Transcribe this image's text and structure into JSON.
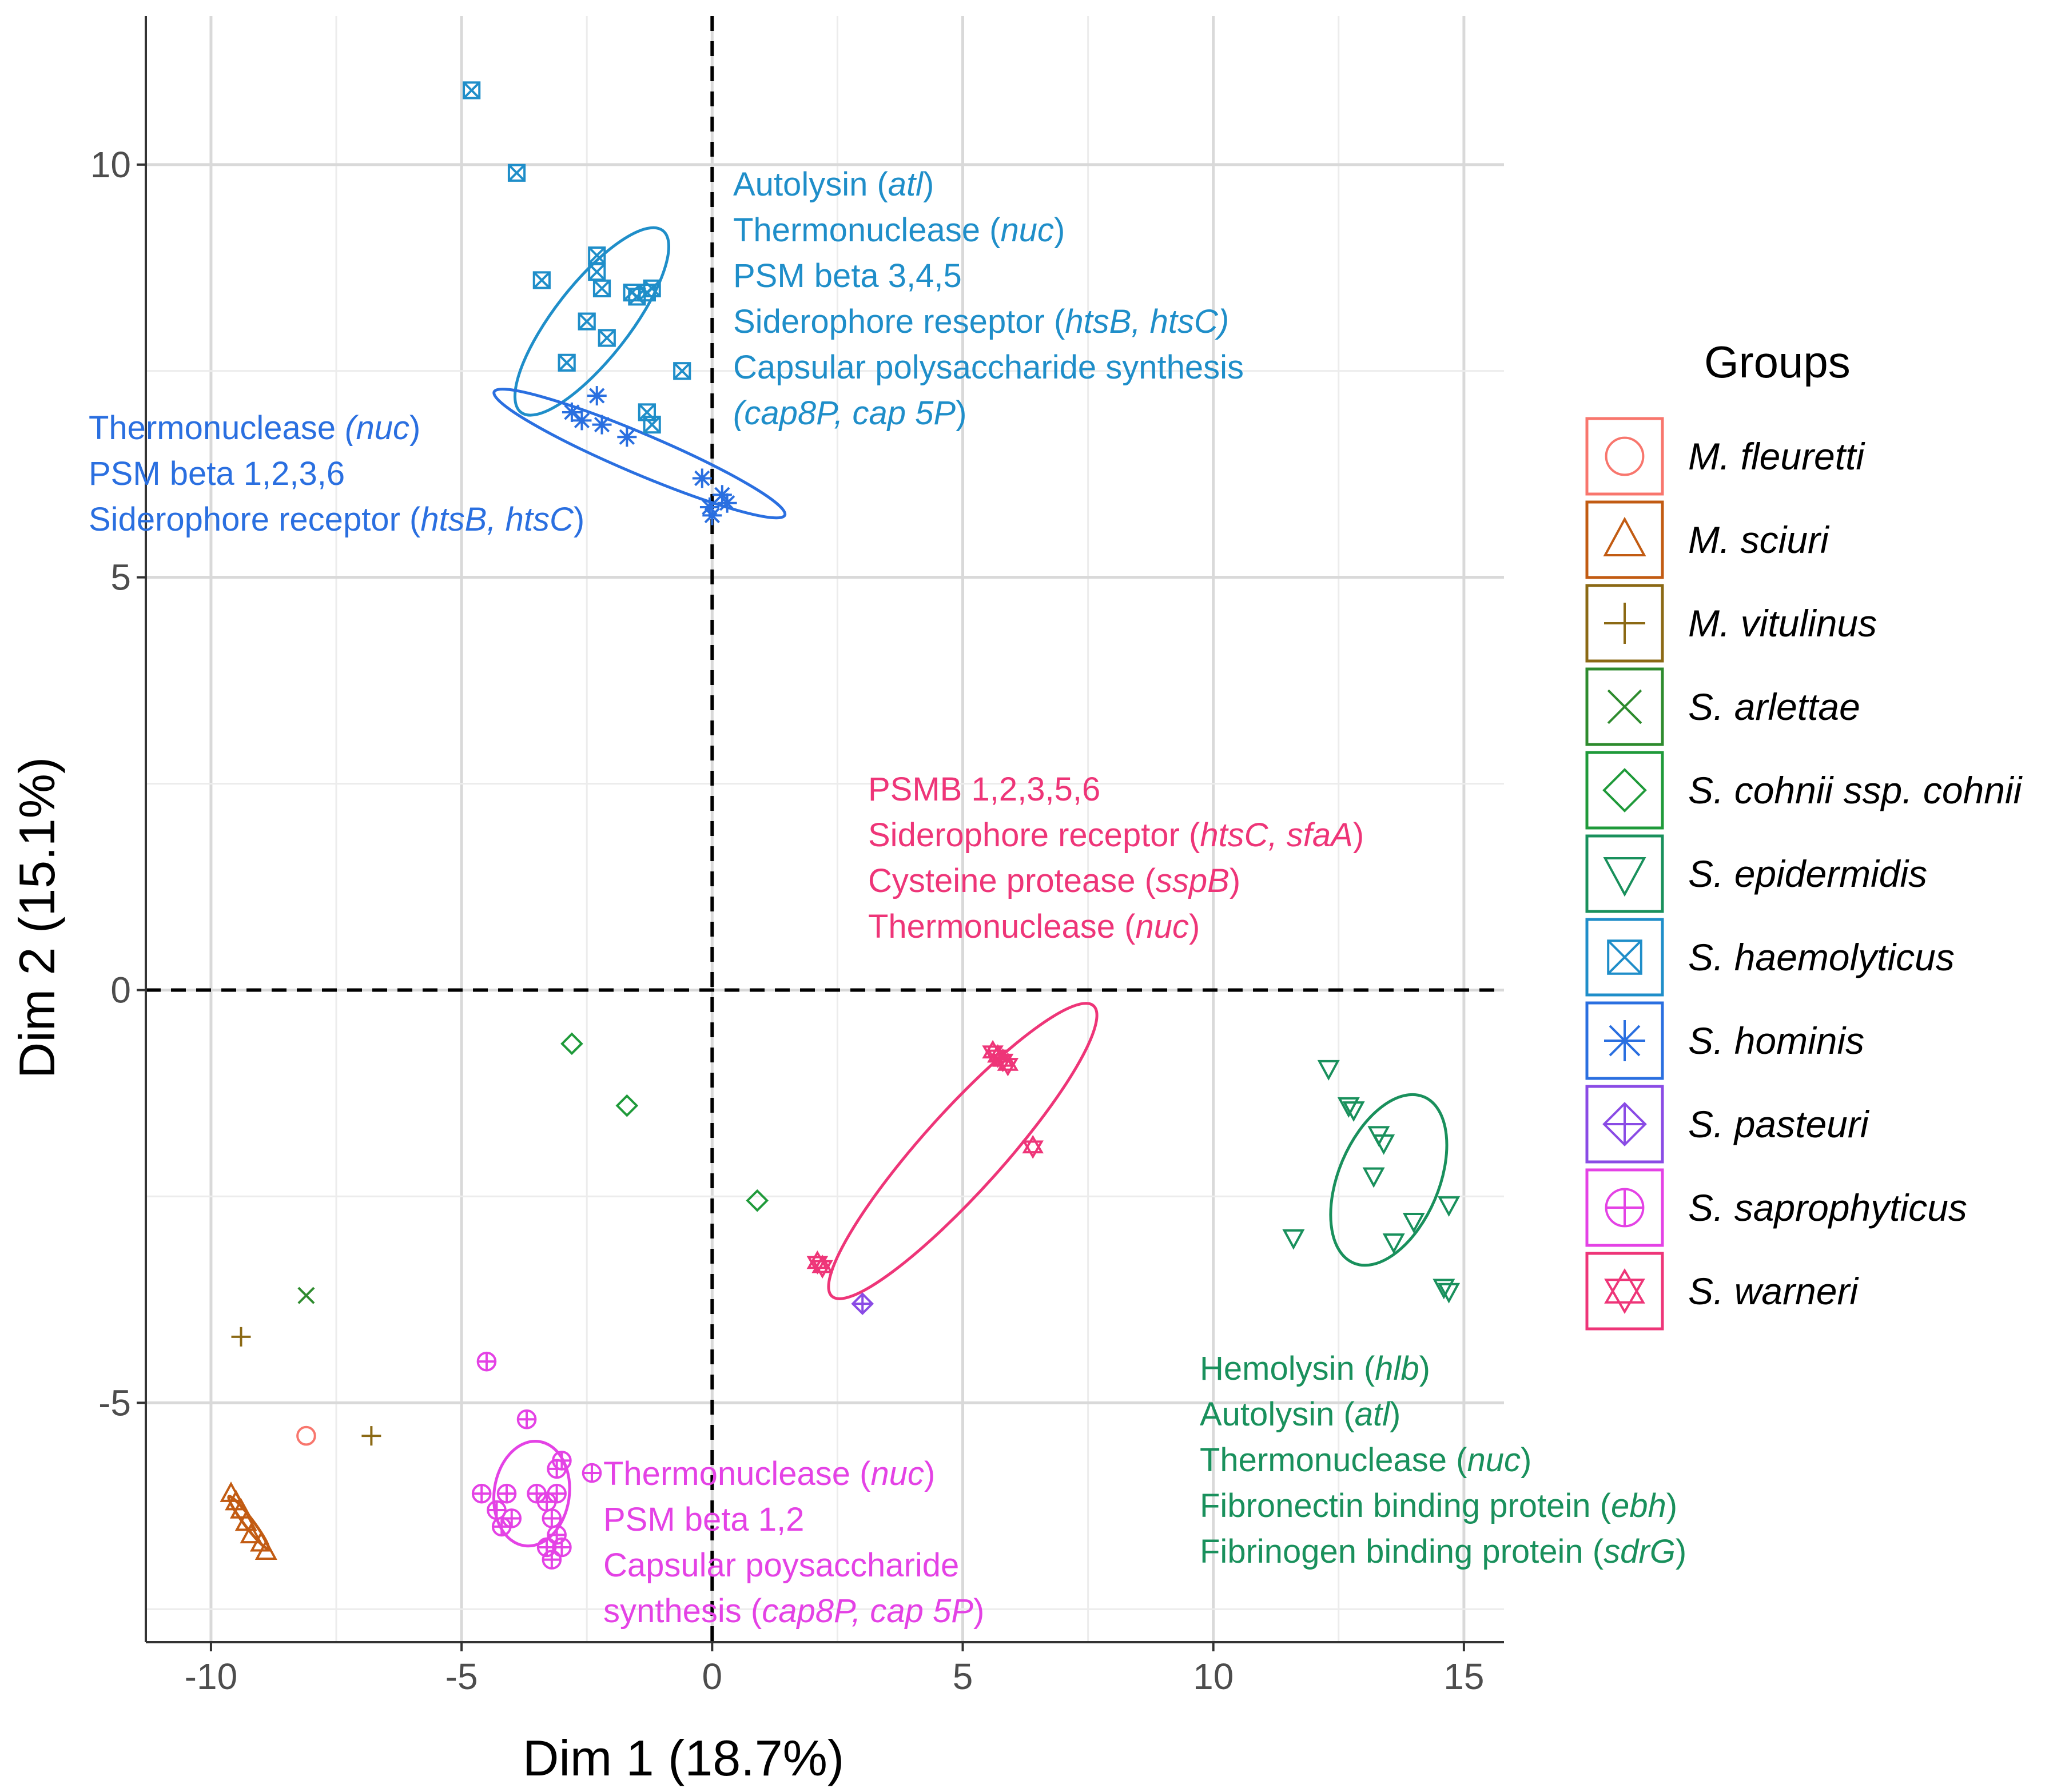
{
  "chart_data": {
    "type": "scatter",
    "title": "",
    "xlabel": "Dim 1 (18.7%)",
    "ylabel": "Dim 2 (15.1%)",
    "xlim": [
      -11.3,
      15.8
    ],
    "ylim": [
      -7.9,
      11.8
    ],
    "xticks": [
      -10,
      -5,
      0,
      5,
      10,
      15
    ],
    "xtick_labels": [
      "-10",
      "-5",
      "0",
      "5",
      "10",
      "15"
    ],
    "yticks": [
      -5,
      0,
      5,
      10
    ],
    "ytick_labels": [
      "-5",
      "0",
      "5",
      "10"
    ],
    "grid": true,
    "legend_title": "Groups",
    "legend_position": "right",
    "series": [
      {
        "name": "M. fleuretti",
        "shape": "circle",
        "color": "#f8766d",
        "points": [
          [
            -8.1,
            -5.4
          ]
        ]
      },
      {
        "name": "M. sciuri",
        "shape": "triangle",
        "color": "#c25b12",
        "points": [
          [
            -9.6,
            -6.1
          ],
          [
            -9.5,
            -6.2
          ],
          [
            -9.4,
            -6.3
          ],
          [
            -9.3,
            -6.45
          ],
          [
            -9.2,
            -6.6
          ],
          [
            -9.0,
            -6.7
          ],
          [
            -8.9,
            -6.8
          ]
        ]
      },
      {
        "name": "M. vitulinus",
        "shape": "plus",
        "color": "#8b6914",
        "points": [
          [
            -9.4,
            -4.2
          ],
          [
            -6.8,
            -5.4
          ]
        ]
      },
      {
        "name": "S. arlettae",
        "shape": "cross",
        "color": "#2e8b2e",
        "points": [
          [
            -8.1,
            -3.7
          ]
        ]
      },
      {
        "name": "S. cohnii ssp. cohnii",
        "shape": "diamond",
        "color": "#1f9a3a",
        "points": [
          [
            -2.8,
            -0.65
          ],
          [
            -1.7,
            -1.4
          ],
          [
            0.9,
            -2.55
          ]
        ]
      },
      {
        "name": "S. epidermidis",
        "shape": "triangle-down",
        "color": "#19905c",
        "points": [
          [
            12.3,
            -0.95
          ],
          [
            12.7,
            -1.4
          ],
          [
            12.8,
            -1.45
          ],
          [
            13.3,
            -1.75
          ],
          [
            13.4,
            -1.85
          ],
          [
            13.2,
            -2.25
          ],
          [
            14.0,
            -2.8
          ],
          [
            13.6,
            -3.05
          ],
          [
            14.7,
            -2.6
          ],
          [
            11.6,
            -3.0
          ],
          [
            14.6,
            -3.6
          ],
          [
            14.7,
            -3.65
          ]
        ]
      },
      {
        "name": "S. haemolyticus",
        "shape": "square-x",
        "color": "#1f8ec9",
        "points": [
          [
            -4.8,
            10.9
          ],
          [
            -3.9,
            9.9
          ],
          [
            -3.4,
            8.6
          ],
          [
            -2.3,
            8.9
          ],
          [
            -2.3,
            8.7
          ],
          [
            -2.2,
            8.5
          ],
          [
            -1.6,
            8.45
          ],
          [
            -1.5,
            8.4
          ],
          [
            -1.3,
            8.45
          ],
          [
            -1.2,
            8.5
          ],
          [
            -2.5,
            8.1
          ],
          [
            -2.1,
            7.9
          ],
          [
            -2.9,
            7.6
          ],
          [
            -0.6,
            7.5
          ],
          [
            -1.3,
            7.0
          ],
          [
            -1.2,
            6.85
          ]
        ]
      },
      {
        "name": "S. hominis",
        "shape": "asterisk",
        "color": "#2a6fe0",
        "points": [
          [
            -2.8,
            7.0
          ],
          [
            -2.6,
            6.9
          ],
          [
            -2.2,
            6.85
          ],
          [
            -2.3,
            7.2
          ],
          [
            -1.7,
            6.7
          ],
          [
            -0.2,
            6.2
          ],
          [
            0.2,
            6.0
          ],
          [
            0.3,
            5.9
          ],
          [
            0.0,
            5.75
          ],
          [
            -0.05,
            5.85
          ]
        ]
      },
      {
        "name": "S. pasteuri",
        "shape": "diamond-plus",
        "color": "#8a4be5",
        "points": [
          [
            3.0,
            -3.8
          ]
        ]
      },
      {
        "name": "S. saprophyticus",
        "shape": "circle-plus",
        "color": "#e442e5",
        "points": [
          [
            -4.5,
            -4.5
          ],
          [
            -3.7,
            -5.2
          ],
          [
            -2.4,
            -5.85
          ],
          [
            -4.6,
            -6.1
          ],
          [
            -4.3,
            -6.3
          ],
          [
            -4.1,
            -6.1
          ],
          [
            -4.0,
            -6.4
          ],
          [
            -4.2,
            -6.5
          ],
          [
            -3.5,
            -6.1
          ],
          [
            -3.3,
            -6.2
          ],
          [
            -3.1,
            -6.1
          ],
          [
            -3.0,
            -5.7
          ],
          [
            -3.1,
            -5.8
          ],
          [
            -3.2,
            -6.4
          ],
          [
            -3.1,
            -6.6
          ],
          [
            -3.3,
            -6.75
          ],
          [
            -3.0,
            -6.75
          ],
          [
            -3.2,
            -6.9
          ]
        ]
      },
      {
        "name": "S. warneri",
        "shape": "star-of-david",
        "color": "#ee3578",
        "points": [
          [
            5.6,
            -0.75
          ],
          [
            5.7,
            -0.8
          ],
          [
            5.8,
            -0.85
          ],
          [
            5.9,
            -0.9
          ],
          [
            6.4,
            -1.9
          ],
          [
            2.1,
            -3.3
          ],
          [
            2.2,
            -3.35
          ]
        ]
      }
    ],
    "ellipses": [
      {
        "group": "S. haemolyticus",
        "color": "#1f8ec9",
        "cx": -2.4,
        "cy": 8.1,
        "rx": 2.3,
        "ry": 0.75,
        "angle": -52
      },
      {
        "group": "S. hominis",
        "color": "#2a6fe0",
        "cx": -1.45,
        "cy": 6.5,
        "rx": 3.15,
        "ry": 0.4,
        "angle": 23
      },
      {
        "group": "S. warneri",
        "color": "#ee3578",
        "cx": 5.0,
        "cy": -1.95,
        "rx": 3.9,
        "ry": 0.8,
        "angle": -48
      },
      {
        "group": "S. epidermidis",
        "color": "#19905c",
        "cx": 13.5,
        "cy": -2.3,
        "rx": 1.8,
        "ry": 1.0,
        "angle": -67
      },
      {
        "group": "S. saprophyticus",
        "color": "#e442e5",
        "cx": -3.6,
        "cy": -6.1,
        "rx": 1.05,
        "ry": 0.75,
        "angle": -82
      },
      {
        "group": "M. sciuri",
        "color": "#c25b12",
        "cx": -9.25,
        "cy": -6.45,
        "rx": 0.65,
        "ry": 0.09,
        "angle": 53
      }
    ]
  },
  "annotations": {
    "haemolyticus": {
      "color": "#1f8ec9",
      "lines": [
        [
          {
            "t": "Autolysin ("
          },
          {
            "t": "atl",
            "i": true
          },
          {
            "t": ")"
          }
        ],
        [
          {
            "t": "Thermonuclease ("
          },
          {
            "t": "nuc",
            "i": true
          },
          {
            "t": ")"
          }
        ],
        [
          {
            "t": "PSM beta 3,4,5"
          }
        ],
        [
          {
            "t": "Siderophore reseptor ("
          },
          {
            "t": "htsB, htsC)",
            "i": true
          }
        ],
        [
          {
            "t": "Capsular polysaccharide synthesis"
          }
        ],
        [
          {
            "t": "(cap8P, cap 5P",
            "i": true
          },
          {
            "t": ")"
          }
        ]
      ]
    },
    "hominis": {
      "color": "#2a6fe0",
      "lines": [
        [
          {
            "t": "Thermonuclease "
          },
          {
            "t": "(nuc",
            "i": true
          },
          {
            "t": ")"
          }
        ],
        [
          {
            "t": "PSM beta 1,2,3,6"
          }
        ],
        [
          {
            "t": "Siderophore receptor ("
          },
          {
            "t": "htsB, htsC",
            "i": true
          },
          {
            "t": ")"
          }
        ]
      ]
    },
    "warneri": {
      "color": "#ee3578",
      "lines": [
        [
          {
            "t": "PSMB 1,2,3,5,6"
          }
        ],
        [
          {
            "t": "Siderophore receptor ("
          },
          {
            "t": "htsC, sfaA",
            "i": true
          },
          {
            "t": ")"
          }
        ],
        [
          {
            "t": "Cysteine protease ("
          },
          {
            "t": "sspB",
            "i": true
          },
          {
            "t": ")"
          }
        ],
        [
          {
            "t": "Thermonuclease ("
          },
          {
            "t": "nuc",
            "i": true
          },
          {
            "t": ")"
          }
        ]
      ]
    },
    "saprophyticus": {
      "color": "#e442e5",
      "lines": [
        [
          {
            "t": "Thermonuclease ("
          },
          {
            "t": "nuc",
            "i": true
          },
          {
            "t": ")"
          }
        ],
        [
          {
            "t": "PSM beta 1,2"
          }
        ],
        [
          {
            "t": "Capsular poysaccharide"
          }
        ],
        [
          {
            "t": "synthesis ("
          },
          {
            "t": "cap8P, cap 5P",
            "i": true
          },
          {
            "t": ")"
          }
        ]
      ]
    },
    "epidermidis": {
      "color": "#19905c",
      "lines": [
        [
          {
            "t": "Hemolysin ("
          },
          {
            "t": "hlb",
            "i": true
          },
          {
            "t": ")"
          }
        ],
        [
          {
            "t": "Autolysin ("
          },
          {
            "t": "atl",
            "i": true
          },
          {
            "t": ")"
          }
        ],
        [
          {
            "t": "Thermonuclease ("
          },
          {
            "t": "nuc",
            "i": true
          },
          {
            "t": ")"
          }
        ],
        [
          {
            "t": "Fibronectin binding protein ("
          },
          {
            "t": "ebh",
            "i": true
          },
          {
            "t": ")"
          }
        ],
        [
          {
            "t": "Fibrinogen binding protein ("
          },
          {
            "t": "sdrG",
            "i": true
          },
          {
            "t": ")"
          }
        ]
      ]
    }
  },
  "legend": {
    "labels": [
      {
        "lead": "M. ",
        "rest": "fleuretti"
      },
      {
        "lead": "M. ",
        "rest": "sciuri"
      },
      {
        "lead": "M. ",
        "rest": "vitulinus"
      },
      {
        "lead": "S.",
        "rest": " arlettae"
      },
      {
        "lead": "S.",
        "rest": " cohnii ssp. cohnii"
      },
      {
        "lead": "S.",
        "rest": " epidermidis"
      },
      {
        "lead": "S.",
        "rest": " haemolyticus"
      },
      {
        "lead": "S.",
        "rest": " hominis"
      },
      {
        "lead": "S.",
        "rest": " pasteuri"
      },
      {
        "lead": "S.",
        "rest": " saprophyticus"
      },
      {
        "lead": "S.",
        "rest": " warneri"
      }
    ]
  }
}
